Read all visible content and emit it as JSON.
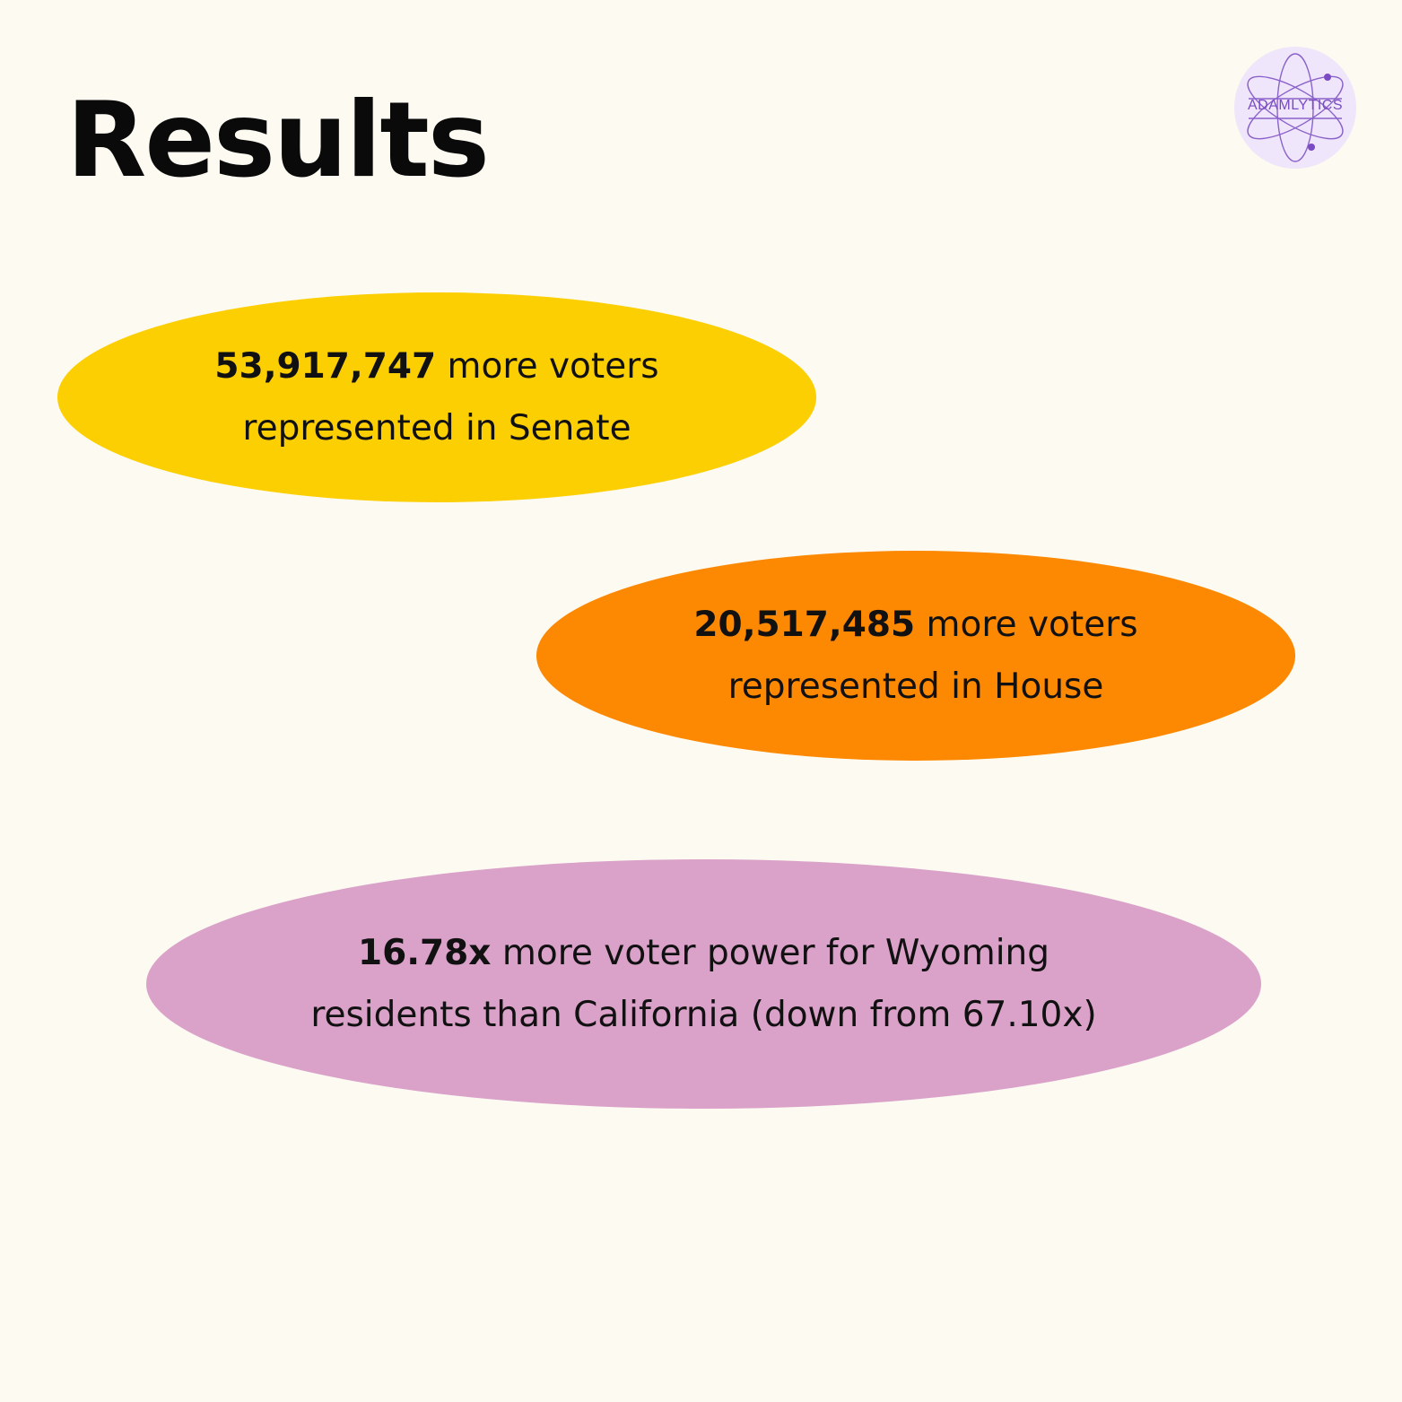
{
  "title": "Results",
  "logo": {
    "text": "ADAMLYTICS",
    "icon": "atom-logo-icon",
    "bg_color": "#efe6fb",
    "accent_color": "#7a4bc2"
  },
  "results": [
    {
      "highlight": "53,917,747",
      "line1_rest": " more voters",
      "line2": "represented in Senate",
      "color": "#fccf03"
    },
    {
      "highlight": "20,517,485",
      "line1_rest": " more voters",
      "line2": "represented in House",
      "color": "#fd8801"
    },
    {
      "highlight": "16.78x",
      "line1_rest": " more voter power for Wyoming",
      "line2": "residents than California (down from 67.10x)",
      "color": "#daa1c9"
    }
  ],
  "background_color": "#fcfaf1"
}
